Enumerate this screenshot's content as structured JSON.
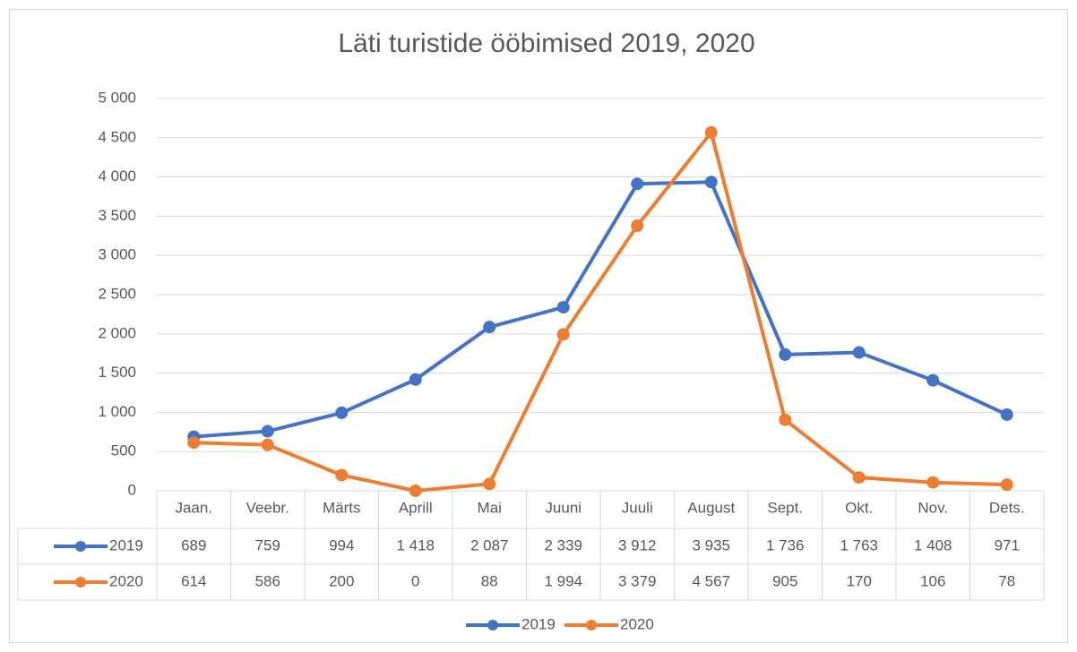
{
  "chart_data": {
    "type": "line",
    "title": "Läti turistide ööbimised 2019, 2020",
    "categories": [
      "Jaan.",
      "Veebr.",
      "Märts",
      "Aprill",
      "Mai",
      "Juuni",
      "Juuli",
      "August",
      "Sept.",
      "Okt.",
      "Nov.",
      "Dets."
    ],
    "series": [
      {
        "name": "2019",
        "color": "#4472c4",
        "values": [
          689,
          759,
          994,
          1418,
          2087,
          2339,
          3912,
          3935,
          1736,
          1763,
          1408,
          971
        ],
        "value_labels": [
          "689",
          "759",
          "994",
          "1 418",
          "2 087",
          "2 339",
          "3 912",
          "3 935",
          "1 736",
          "1 763",
          "1 408",
          "971"
        ]
      },
      {
        "name": "2020",
        "color": "#ed7d31",
        "values": [
          614,
          586,
          200,
          0,
          88,
          1994,
          3379,
          4567,
          905,
          170,
          106,
          78
        ],
        "value_labels": [
          "614",
          "586",
          "200",
          "0",
          "88",
          "1 994",
          "3 379",
          "4 567",
          "905",
          "170",
          "106",
          "78"
        ]
      }
    ],
    "ylim": [
      0,
      5000
    ],
    "yticks": [
      0,
      500,
      {
        "value": 1000,
        "label": "1 000"
      },
      {
        "value": 1500,
        "label": "1 500"
      },
      {
        "value": 2000,
        "label": "2 000"
      },
      {
        "value": 2500,
        "label": "2 500"
      },
      {
        "value": 3000,
        "label": "3 000"
      },
      {
        "value": 3500,
        "label": "3 500"
      },
      {
        "value": 4000,
        "label": "4 000"
      },
      {
        "value": 4500,
        "label": "4 500"
      },
      {
        "value": 5000,
        "label": "5 000"
      }
    ],
    "grid": true,
    "legend": "bottom"
  }
}
